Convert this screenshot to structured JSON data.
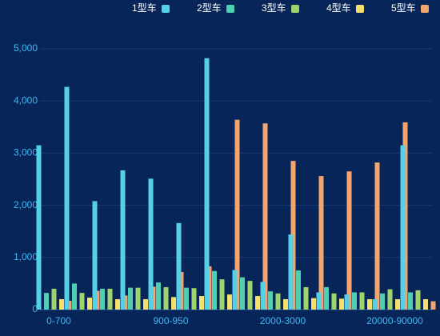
{
  "chart_data": {
    "type": "bar",
    "categories": [
      "0-700",
      null,
      null,
      null,
      "900-950",
      null,
      null,
      null,
      "2000-3000",
      null,
      null,
      null,
      "20000-90000",
      null
    ],
    "series": [
      {
        "name": "1型车",
        "color": "#56d0e6",
        "values": [
          3150,
          4270,
          2080,
          2670,
          2510,
          1660,
          4820,
          760,
          530,
          1440,
          330,
          290,
          200,
          3150
        ]
      },
      {
        "name": "2型车",
        "color": "#4fcfb2",
        "values": [
          320,
          500,
          400,
          420,
          520,
          420,
          740,
          620,
          350,
          750,
          430,
          330,
          310,
          330
        ]
      },
      {
        "name": "3型车",
        "color": "#9fd46c",
        "values": [
          400,
          320,
          400,
          420,
          430,
          410,
          580,
          550,
          310,
          430,
          310,
          330,
          390,
          370
        ]
      },
      {
        "name": "4型车",
        "color": "#f6df6c",
        "values": [
          200,
          230,
          200,
          200,
          240,
          260,
          290,
          260,
          200,
          220,
          210,
          200,
          200,
          200
        ]
      },
      {
        "name": "5型车",
        "color": "#f4a56e",
        "values": [
          170,
          360,
          270,
          440,
          720,
          830,
          3640,
          3570,
          2850,
          2560,
          2650,
          2820,
          3590,
          160
        ]
      }
    ],
    "ylim": [
      0,
      5000
    ],
    "yticks": [
      0,
      {
        "value": 1000,
        "label": "1,000"
      },
      {
        "value": 2000,
        "label": "2,000"
      },
      {
        "value": 3000,
        "label": "3,000"
      },
      {
        "value": 4000,
        "label": "4,000"
      },
      {
        "value": 5000,
        "label": "5,000"
      }
    ],
    "grid": true,
    "legend": "top-right"
  }
}
